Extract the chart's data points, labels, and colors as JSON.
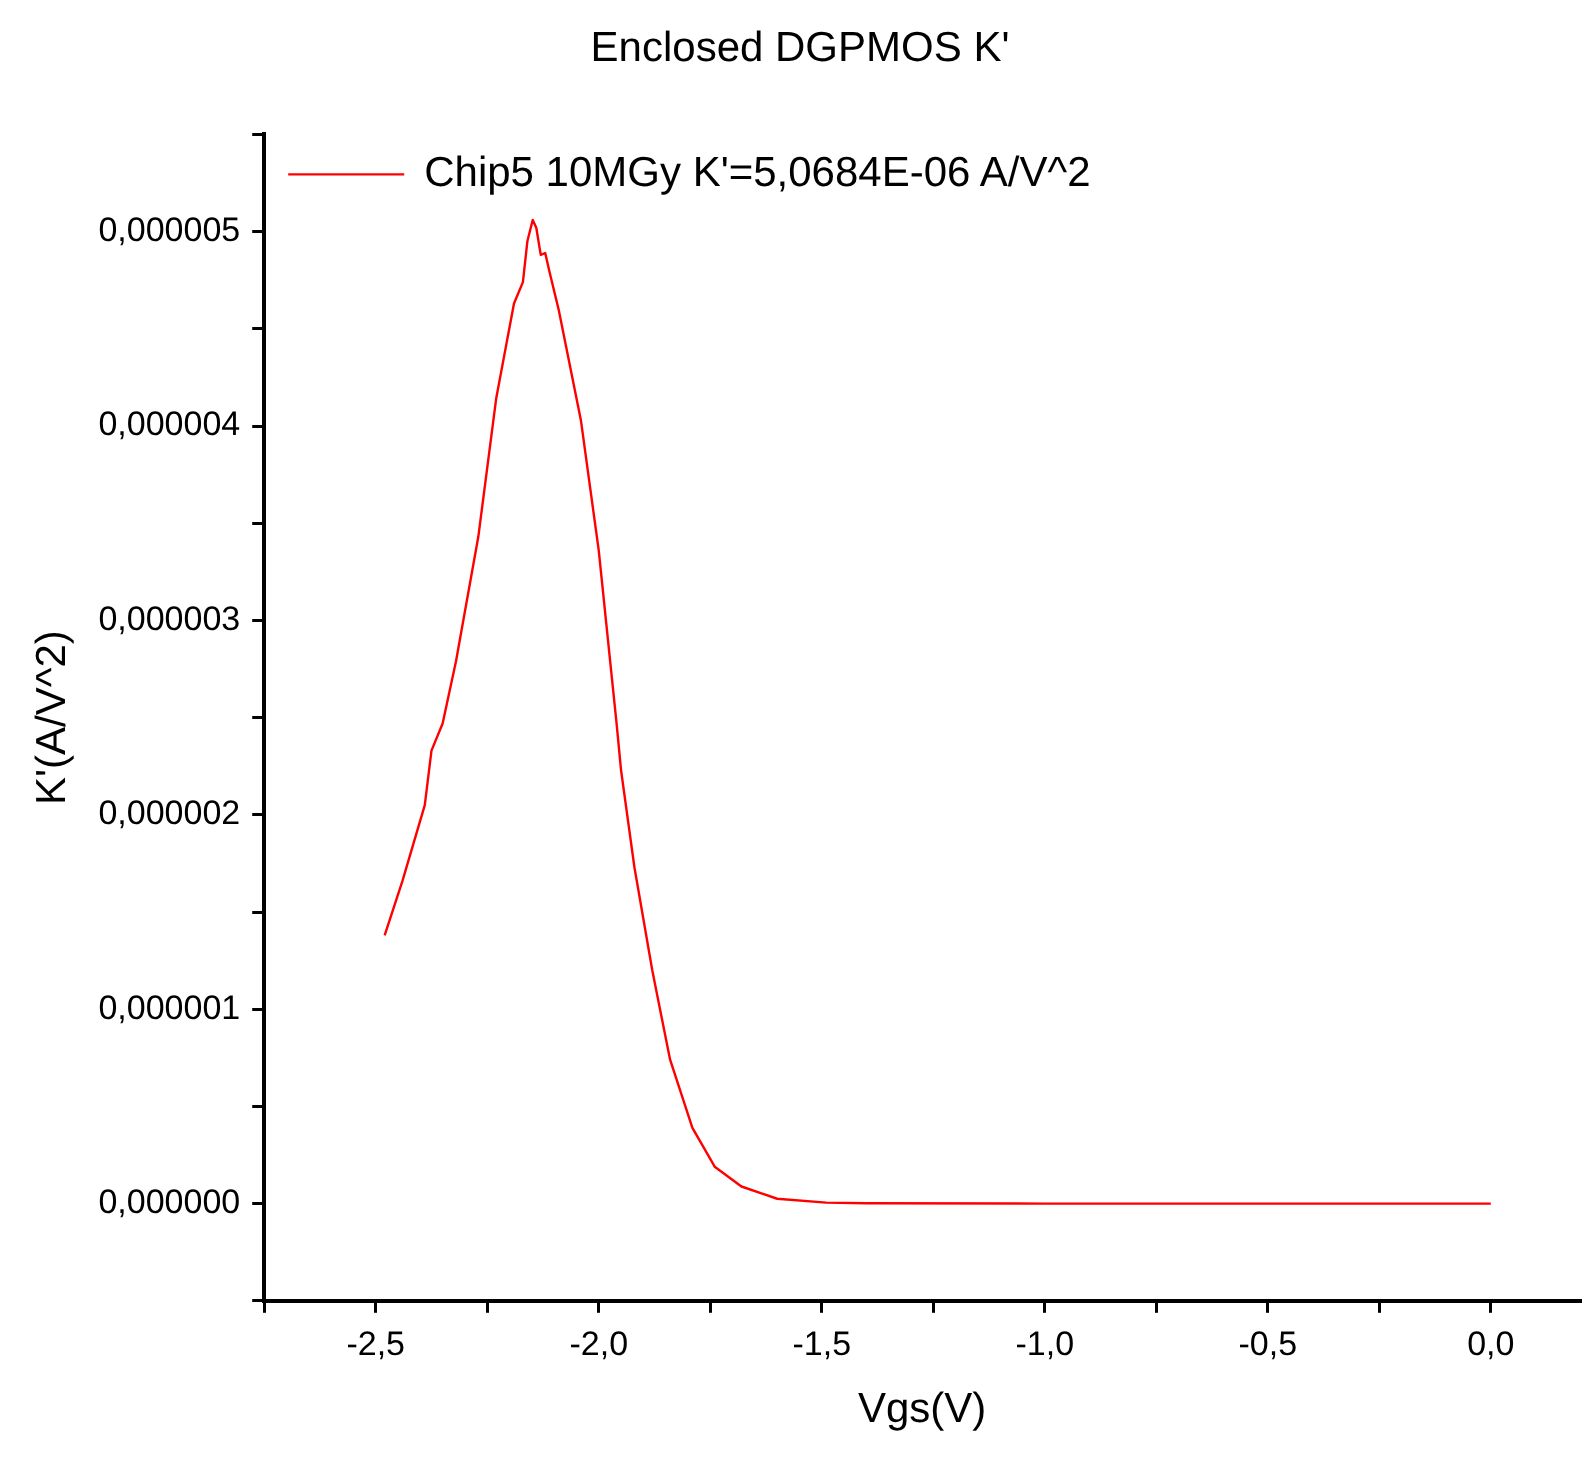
{
  "chart_data": {
    "type": "line",
    "title": "Enclosed DGPMOS K'",
    "xlabel": "Vgs(V)",
    "ylabel": "K'(A/V^2)",
    "x": [
      -2.48,
      -2.44,
      -2.39,
      -2.375,
      -2.35,
      -2.32,
      -2.27,
      -2.23,
      -2.19,
      -2.17,
      -2.16,
      -2.148,
      -2.14,
      -2.13,
      -2.12,
      -2.11,
      -2.09,
      -2.04,
      -2.0,
      -1.96,
      -1.95,
      -1.92,
      -1.88,
      -1.84,
      -1.79,
      -1.74,
      -1.68,
      -1.6,
      -1.49,
      -1.4,
      -1.0,
      -0.5,
      0.0
    ],
    "series": [
      {
        "name": "Chip5 10MGy K'=5,0684E-06 A/V^2",
        "color": "#ff0000",
        "values": [
          1.38e-06,
          1.66e-06,
          2.05e-06,
          2.33e-06,
          2.47e-06,
          2.79e-06,
          3.43e-06,
          4.14e-06,
          4.63e-06,
          4.74e-06,
          4.95e-06,
          5.06e-06,
          5.02e-06,
          4.88e-06,
          4.89e-06,
          4.79e-06,
          4.6e-06,
          4.03e-06,
          3.36e-06,
          2.47e-06,
          2.23e-06,
          1.73e-06,
          1.2e-06,
          7.4e-07,
          3.9e-07,
          1.9e-07,
          8.8e-08,
          2.5e-08,
          5e-09,
          2e-09,
          0,
          0,
          0
        ]
      }
    ],
    "xlim": [
      -2.75,
      0.2
    ],
    "xticks": [
      {
        "value": -2.75,
        "label": null
      },
      {
        "value": -2.5,
        "label": "-2,5"
      },
      {
        "value": -2.25,
        "label": null
      },
      {
        "value": -2.0,
        "label": "-2,0"
      },
      {
        "value": -1.75,
        "label": null
      },
      {
        "value": -1.5,
        "label": "-1,5"
      },
      {
        "value": -1.25,
        "label": null
      },
      {
        "value": -1.0,
        "label": "-1,0"
      },
      {
        "value": -0.75,
        "label": null
      },
      {
        "value": -0.5,
        "label": "-0,5"
      },
      {
        "value": -0.25,
        "label": null
      },
      {
        "value": 0,
        "label": "0,0"
      }
    ],
    "ylim": [
      -5e-07,
      5.5e-06
    ],
    "yticks": [
      {
        "value": -5e-07,
        "label": null
      },
      {
        "value": 0,
        "label": "0,000000"
      },
      {
        "value": 5e-07,
        "label": null
      },
      {
        "value": 1e-06,
        "label": "0,000001"
      },
      {
        "value": 1.5e-06,
        "label": null
      },
      {
        "value": 2e-06,
        "label": "0,000002"
      },
      {
        "value": 2.5e-06,
        "label": null
      },
      {
        "value": 3e-06,
        "label": "0,000003"
      },
      {
        "value": 3.5e-06,
        "label": null
      },
      {
        "value": 4e-06,
        "label": "0,000004"
      },
      {
        "value": 4.5e-06,
        "label": null
      },
      {
        "value": 5e-06,
        "label": "0,000005"
      },
      {
        "value": 5.5e-06,
        "label": null
      }
    ],
    "grid": false,
    "legend": "top left",
    "marker": "none",
    "line_style": "solid"
  }
}
